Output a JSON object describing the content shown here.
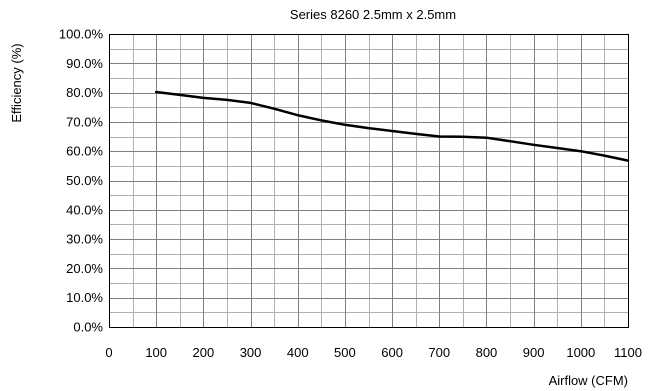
{
  "chart_data": {
    "type": "line",
    "title": "Series 8260 2.5mm x 2.5mm",
    "xlabel": "Airflow (CFM)",
    "ylabel": "Efficiency (%)",
    "xlim": [
      0,
      1100
    ],
    "ylim": [
      0,
      100
    ],
    "x_ticks": [
      0,
      100,
      200,
      300,
      400,
      500,
      600,
      700,
      800,
      900,
      1000,
      1100
    ],
    "x_tick_labels": [
      "0",
      "100",
      "200",
      "300",
      "400",
      "500",
      "600",
      "700",
      "800",
      "900",
      "1000",
      "1100"
    ],
    "y_ticks": [
      0,
      10,
      20,
      30,
      40,
      50,
      60,
      70,
      80,
      90,
      100
    ],
    "y_tick_labels": [
      "0.0%",
      "10.0%",
      "20.0%",
      "30.0%",
      "40.0%",
      "50.0%",
      "60.0%",
      "70.0%",
      "80.0%",
      "90.0%",
      "100.0%"
    ],
    "x_minor_step": 50,
    "y_minor_step": 5,
    "grid": true,
    "line_color": "#000000",
    "grid_color": "#808080",
    "series": [
      {
        "x": [
          100,
          150,
          200,
          250,
          300,
          350,
          400,
          450,
          500,
          550,
          600,
          650,
          700,
          750,
          800,
          850,
          900,
          950,
          1000,
          1050,
          1100
        ],
        "values": [
          80.2,
          79.2,
          78.2,
          77.5,
          76.5,
          74.5,
          72.3,
          70.5,
          69.0,
          67.9,
          66.9,
          65.9,
          65.0,
          64.9,
          64.6,
          63.4,
          62.2,
          61.1,
          60.0,
          58.5,
          56.8
        ]
      }
    ]
  }
}
